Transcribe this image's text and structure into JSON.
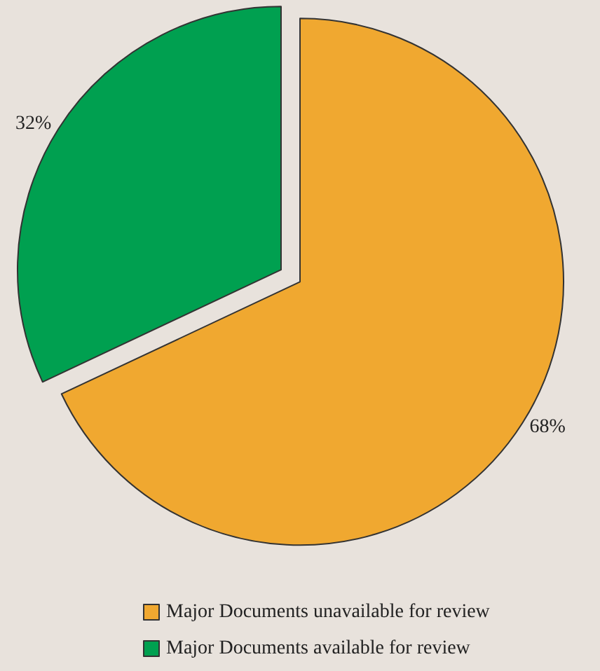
{
  "chart_data": {
    "type": "pie",
    "categories": [
      "Major Documents unavailable for review",
      "Major Documents available for review"
    ],
    "values": [
      68,
      32
    ],
    "colors": [
      "#f0a830",
      "#00a050"
    ],
    "value_labels": [
      "68%",
      "32%"
    ],
    "legend": "bottom"
  }
}
